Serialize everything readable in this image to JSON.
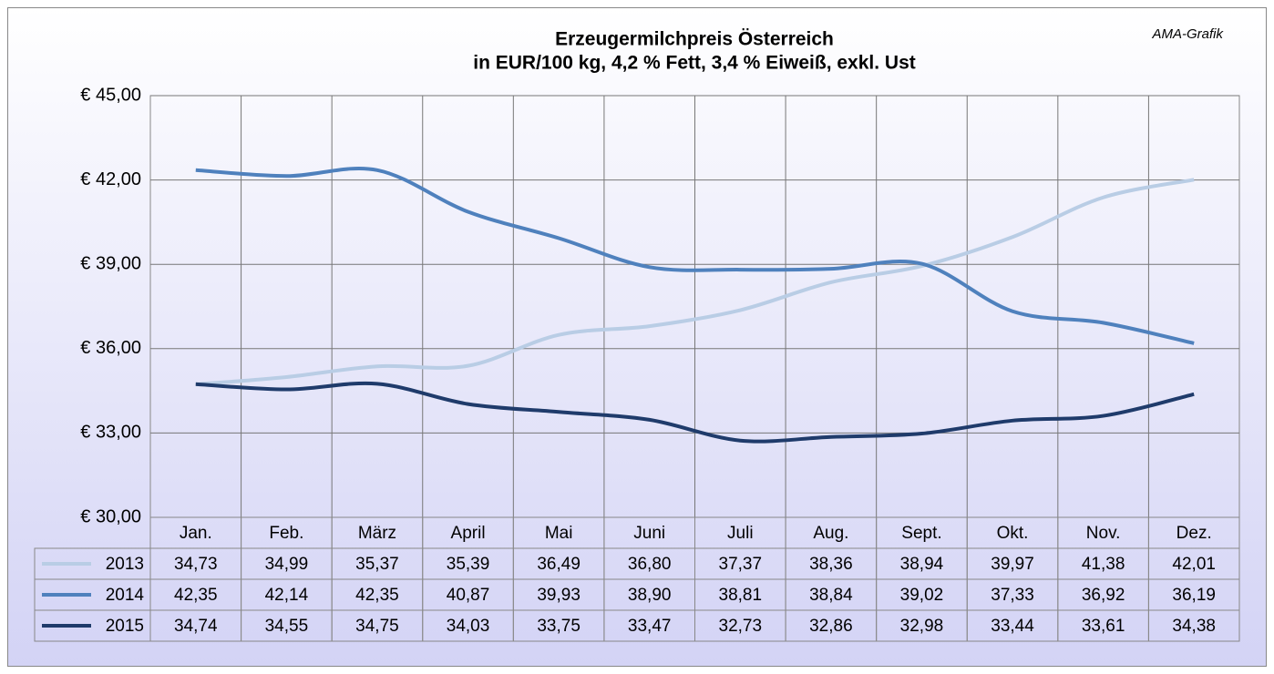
{
  "chart_data": {
    "type": "line",
    "title": "Erzeugermilchpreis Österreich",
    "subtitle": "in EUR/100 kg, 4,2 % Fett, 3,4 % Eiweiß, exkl. Ust",
    "annotation": "AMA-Grafik",
    "categories": [
      "Jan.",
      "Feb.",
      "März",
      "April",
      "Mai",
      "Juni",
      "Juli",
      "Aug.",
      "Sept.",
      "Okt.",
      "Nov.",
      "Dez."
    ],
    "series": [
      {
        "name": "2013",
        "color": "#b9cde5",
        "values": [
          34.73,
          34.99,
          35.37,
          35.39,
          36.49,
          36.8,
          37.37,
          38.36,
          38.94,
          39.97,
          41.38,
          42.01
        ],
        "value_labels": [
          "34,73",
          "34,99",
          "35,37",
          "35,39",
          "36,49",
          "36,80",
          "37,37",
          "38,36",
          "38,94",
          "39,97",
          "41,38",
          "42,01"
        ]
      },
      {
        "name": "2014",
        "color": "#4f81bd",
        "values": [
          42.35,
          42.14,
          42.35,
          40.87,
          39.93,
          38.9,
          38.81,
          38.84,
          39.02,
          37.33,
          36.92,
          36.19
        ],
        "value_labels": [
          "42,35",
          "42,14",
          "42,35",
          "40,87",
          "39,93",
          "38,90",
          "38,81",
          "38,84",
          "39,02",
          "37,33",
          "36,92",
          "36,19"
        ]
      },
      {
        "name": "2015",
        "color": "#1f3b6b",
        "values": [
          34.74,
          34.55,
          34.75,
          34.03,
          33.75,
          33.47,
          32.73,
          32.86,
          32.98,
          33.44,
          33.61,
          34.38
        ],
        "value_labels": [
          "34,74",
          "34,55",
          "34,75",
          "34,03",
          "33,75",
          "33,47",
          "32,73",
          "32,86",
          "32,98",
          "33,44",
          "33,61",
          "34,38"
        ]
      }
    ],
    "ylim": [
      30,
      45
    ],
    "yticks": [
      {
        "value": 30,
        "label": "€ 30,00"
      },
      {
        "value": 33,
        "label": "€ 33,00"
      },
      {
        "value": 36,
        "label": "€ 36,00"
      },
      {
        "value": 39,
        "label": "€ 39,00"
      },
      {
        "value": 42,
        "label": "€ 42,00"
      },
      {
        "value": 45,
        "label": "€ 45,00"
      }
    ],
    "grid": true
  }
}
